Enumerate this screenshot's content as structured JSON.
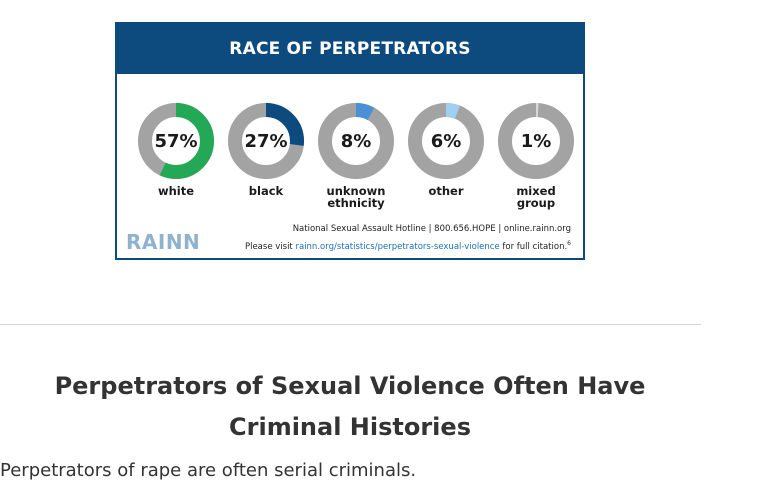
{
  "infographic": {
    "title": "RACE OF PERPETRATORS",
    "logo": "RAINN",
    "hotline_line": "National Sexual Assault Hotline | 800.656.HOPE | online.rainn.org",
    "citation_prefix": "Please visit",
    "citation_link": "rainn.org/statistics/perpetrators-sexual-violence",
    "citation_suffix": "for full citation.",
    "citation_sup": "6",
    "colors": {
      "header_bg": "#0d4a7e",
      "ring_bg": "#a3a3a3",
      "logo": "#8fb2cf"
    },
    "items": [
      {
        "pct_text": "57%",
        "value": 57,
        "label": "white",
        "color": "#23a956"
      },
      {
        "pct_text": "27%",
        "value": 27,
        "label": "black",
        "color": "#0d4a7e"
      },
      {
        "pct_text": "8%",
        "value": 8,
        "label": "unknown ethnicity",
        "color": "#4a90d6"
      },
      {
        "pct_text": "6%",
        "value": 6,
        "label": "other",
        "color": "#9fd0f2"
      },
      {
        "pct_text": "1%",
        "value": 1,
        "label": "mixed group",
        "color": "#d8d8d8"
      }
    ]
  },
  "section": {
    "title": "Perpetrators of Sexual Violence Often Have Criminal Histories",
    "body": "Perpetrators of rape are often serial criminals."
  }
}
